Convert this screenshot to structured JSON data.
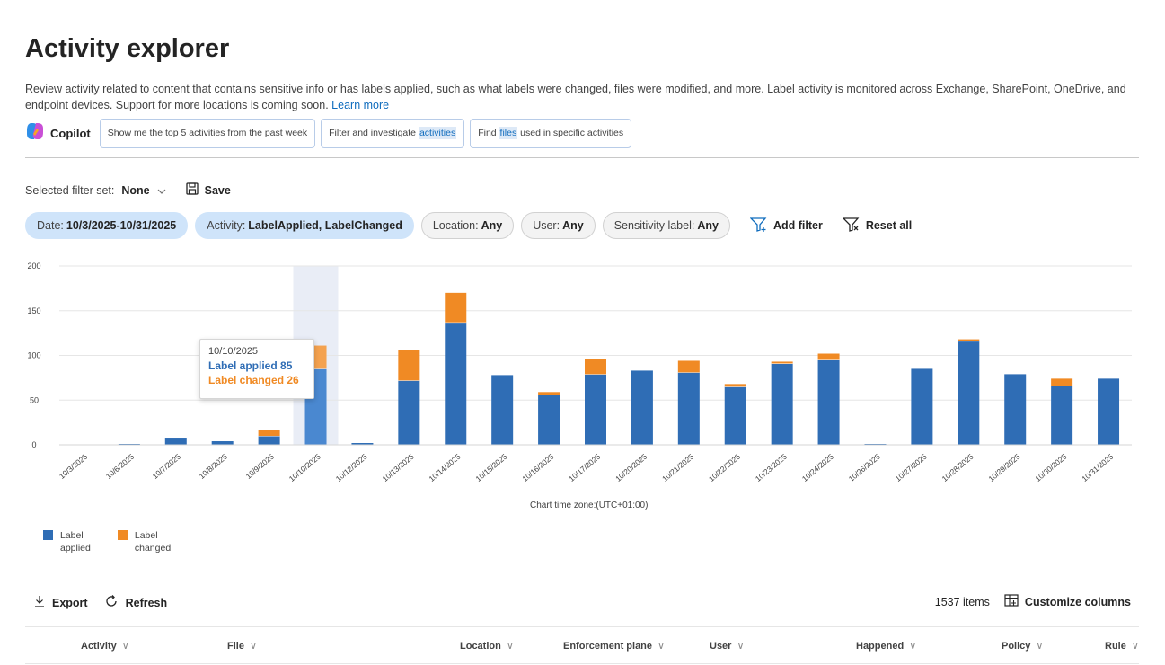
{
  "page": {
    "title": "Activity explorer",
    "description": "Review activity related to content that contains sensitive info or has labels applied, such as what labels were changed, files were modified, and more. Label activity is monitored across Exchange, SharePoint, OneDrive, and endpoint devices. Support for more locations is coming soon.",
    "learn_more": "Learn more"
  },
  "copilot": {
    "label": "Copilot",
    "prompt1": "Show me the top 5 activities from the past week",
    "prompt2_pre": "Filter and investigate ",
    "prompt2_hl": "activities",
    "prompt3_pre": "Find ",
    "prompt3_hl": "files",
    "prompt3_post": " used in specific activities"
  },
  "filterset": {
    "label": "Selected filter set:",
    "value": "None",
    "save_label": "Save"
  },
  "filters": {
    "date_key": "Date:",
    "date_value": "10/3/2025-10/31/2025",
    "activity_key": "Activity:",
    "activity_value": "LabelApplied, LabelChanged",
    "location_key": "Location:",
    "location_value": "Any",
    "user_key": "User:",
    "user_value": "Any",
    "sens_key": "Sensitivity label:",
    "sens_value": "Any",
    "add_filter": "Add filter",
    "reset_all": "Reset all"
  },
  "tooltip": {
    "date": "10/10/2025",
    "applied": "Label applied 85",
    "changed": "Label changed 26"
  },
  "chart_data": {
    "type": "bar",
    "stacked": true,
    "categories": [
      "10/3/2025",
      "10/6/2025",
      "10/7/2025",
      "10/8/2025",
      "10/9/2025",
      "10/10/2025",
      "10/12/2025",
      "10/13/2025",
      "10/14/2025",
      "10/15/2025",
      "10/16/2025",
      "10/17/2025",
      "10/20/2025",
      "10/21/2025",
      "10/22/2025",
      "10/23/2025",
      "10/24/2025",
      "10/26/2025",
      "10/27/2025",
      "10/28/2025",
      "10/29/2025",
      "10/30/2025",
      "10/31/2025"
    ],
    "series": [
      {
        "name": "Label applied",
        "color": "#2f6db5",
        "values": [
          0,
          1,
          8,
          4,
          10,
          85,
          2,
          72,
          137,
          78,
          56,
          79,
          83,
          81,
          65,
          91,
          95,
          1,
          85,
          116,
          79,
          66,
          74
        ]
      },
      {
        "name": "Label changed",
        "color": "#f08a24",
        "values": [
          0,
          0,
          0,
          0,
          7,
          26,
          0,
          34,
          33,
          0,
          3,
          17,
          0,
          13,
          3,
          2,
          7,
          0,
          0,
          2,
          0,
          8,
          0
        ]
      }
    ],
    "ylim": [
      0,
      200
    ],
    "yticks": [
      0,
      50,
      100,
      150,
      200
    ],
    "highlight_index": 5,
    "grid": true,
    "xlabel": "Chart time zone:(UTC+01:00)"
  },
  "legend": {
    "applied_l1": "Label",
    "applied_l2": "applied",
    "changed_l1": "Label",
    "changed_l2": "changed"
  },
  "toolbar": {
    "export": "Export",
    "refresh": "Refresh",
    "count": "1537 items",
    "customize": "Customize columns"
  },
  "columns": [
    "Activity",
    "File",
    "Location",
    "Enforcement plane",
    "User",
    "Happened",
    "Policy",
    "Rule"
  ]
}
